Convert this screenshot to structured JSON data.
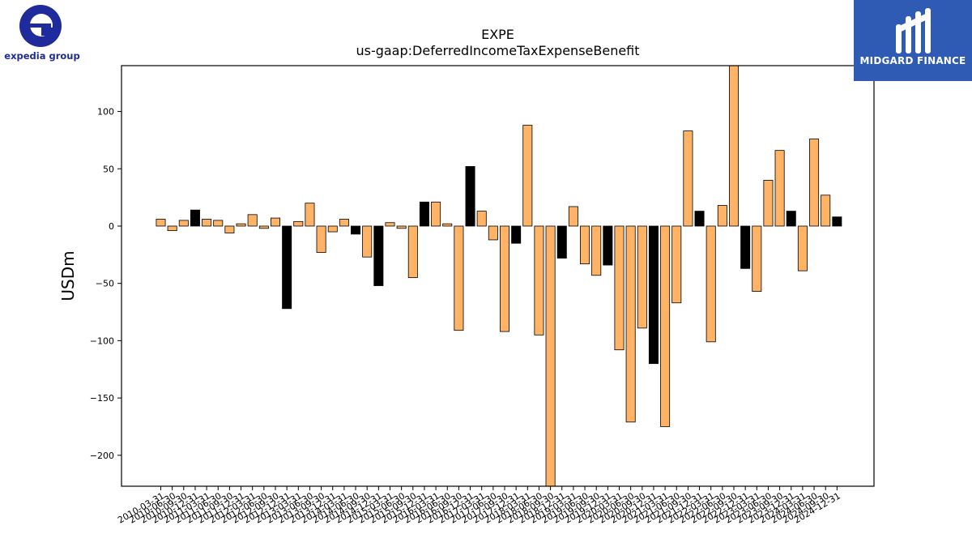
{
  "logos": {
    "left_text": "expedia group",
    "right_text": "MIDGARD FINANCE"
  },
  "chart_data": {
    "type": "bar",
    "title": "EXPE",
    "subtitle": "us-gaap:DeferredIncomeTaxExpenseBenefit",
    "xlabel": "",
    "ylabel": "USDm",
    "ylim": [
      -227,
      140
    ],
    "yticks": [
      100,
      50,
      0,
      -50,
      -100,
      -150,
      -200
    ],
    "ytick_labels": [
      "100",
      "50",
      "0",
      "−50",
      "−100",
      "−150",
      "−200"
    ],
    "grid": false,
    "colors": {
      "default": "#ffb366",
      "highlight": "#000000",
      "edge": "#000000"
    },
    "categories": [
      "2010-03-31",
      "2010-06-30",
      "2010-09-30",
      "2010-12-31",
      "2011-03-31",
      "2011-06-30",
      "2011-09-30",
      "2011-12-31",
      "2012-03-31",
      "2012-06-30",
      "2012-09-30",
      "2012-12-31",
      "2013-03-31",
      "2013-06-30",
      "2013-09-30",
      "2013-12-31",
      "2014-03-31",
      "2014-06-30",
      "2014-09-30",
      "2014-12-31",
      "2015-03-31",
      "2015-06-30",
      "2015-09-30",
      "2015-12-31",
      "2016-03-31",
      "2016-06-30",
      "2016-09-30",
      "2016-12-31",
      "2017-03-31",
      "2017-06-30",
      "2017-09-30",
      "2017-12-31",
      "2018-03-31",
      "2018-06-30",
      "2018-09-30",
      "2018-12-31",
      "2019-03-31",
      "2019-06-30",
      "2019-09-30",
      "2019-12-31",
      "2020-03-31",
      "2020-06-30",
      "2020-09-30",
      "2020-12-31",
      "2021-03-31",
      "2021-06-30",
      "2021-09-30",
      "2021-12-31",
      "2022-03-31",
      "2022-06-30",
      "2022-09-30",
      "2022-12-31",
      "2023-03-31",
      "2023-06-30",
      "2023-09-30",
      "2023-12-31",
      "2024-03-31",
      "2024-06-30",
      "2024-09-30",
      "2024-12-31"
    ],
    "values": [
      6,
      -4,
      5,
      14,
      6,
      5,
      -6,
      2,
      10,
      -2,
      7,
      -72,
      4,
      20,
      -23,
      -5,
      6,
      -7,
      -27,
      -52,
      3,
      -2,
      -45,
      21,
      21,
      2,
      -91,
      52,
      13,
      -12,
      -92,
      -15,
      88,
      -95,
      -227,
      -28,
      17,
      -33,
      -43,
      -34,
      -108,
      -171,
      -89,
      -120,
      -175,
      -67,
      83,
      13,
      -101,
      18,
      140,
      -37,
      -57,
      40,
      66,
      13,
      -39,
      76,
      27,
      8
    ],
    "highlight_indices": [
      3,
      11,
      17,
      19,
      23,
      27,
      31,
      35,
      39,
      43,
      47,
      51,
      55,
      59
    ]
  }
}
